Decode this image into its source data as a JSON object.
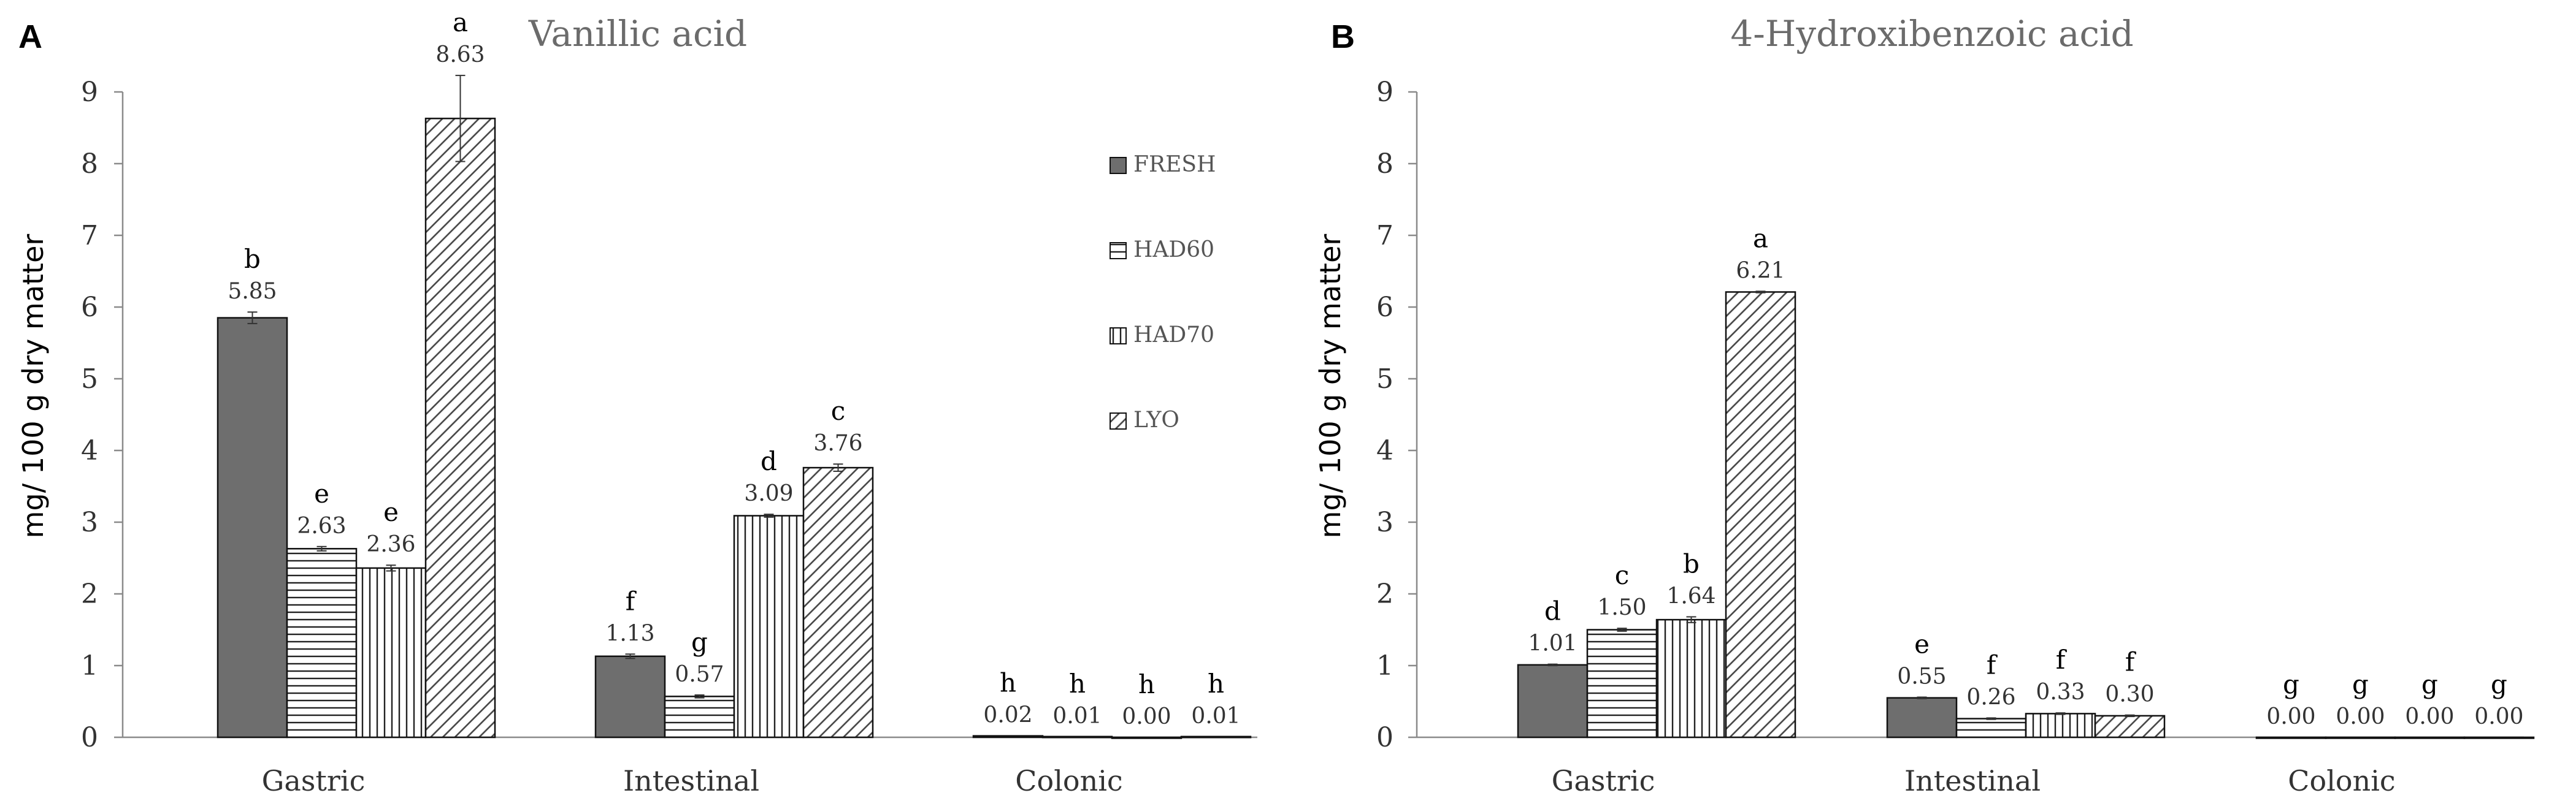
{
  "colors": {
    "FRESH": "#6e6e6e",
    "HAD60": "#ffffff",
    "HAD70": "#ffffff",
    "LYO": "#ffffff",
    "axis": "#8a8a8a",
    "stroke": "#111111"
  },
  "chart_data": [
    {
      "panel_label": "A",
      "type": "bar",
      "title": "Vanillic acid",
      "xlabel": "",
      "ylabel": "mg/ 100 g dry matter",
      "ylim": [
        0,
        9
      ],
      "yticks": [
        "0",
        "1",
        "2",
        "3",
        "4",
        "5",
        "6",
        "7",
        "8",
        "9"
      ],
      "categories": [
        "Gastric",
        "Intestinal",
        "Colonic"
      ],
      "legend_position": "right-upper",
      "series": [
        {
          "name": "FRESH",
          "pattern": "solid",
          "values": [
            5.85,
            1.13,
            0.02
          ],
          "labels": [
            "5.85",
            "1.13",
            "0.02"
          ],
          "letters": [
            "b",
            "f",
            "h"
          ],
          "errors": [
            0.08,
            0.03,
            0
          ]
        },
        {
          "name": "HAD60",
          "pattern": "horizontal",
          "values": [
            2.63,
            0.57,
            0.01
          ],
          "labels": [
            "2.63",
            "0.57",
            "0.01"
          ],
          "letters": [
            "e",
            "g",
            "h"
          ],
          "errors": [
            0.03,
            0.02,
            0
          ]
        },
        {
          "name": "HAD70",
          "pattern": "vertical",
          "values": [
            2.36,
            3.09,
            0.0
          ],
          "labels": [
            "2.36",
            "3.09",
            "0.00"
          ],
          "letters": [
            "e",
            "d",
            "h"
          ],
          "errors": [
            0.04,
            0.02,
            0
          ]
        },
        {
          "name": "LYO",
          "pattern": "diagonal",
          "values": [
            8.63,
            3.76,
            0.01
          ],
          "labels": [
            "8.63",
            "3.76",
            "0.01"
          ],
          "letters": [
            "a",
            "c",
            "h"
          ],
          "errors": [
            0.6,
            0.05,
            0
          ]
        }
      ]
    },
    {
      "panel_label": "B",
      "type": "bar",
      "title": "4-Hydroxibenzoic acid",
      "xlabel": "",
      "ylabel": "mg/ 100 g dry matter",
      "ylim": [
        0,
        9
      ],
      "yticks": [
        "0",
        "1",
        "2",
        "3",
        "4",
        "5",
        "6",
        "7",
        "8",
        "9"
      ],
      "categories": [
        "Gastric",
        "Intestinal",
        "Colonic"
      ],
      "series": [
        {
          "name": "FRESH",
          "pattern": "solid",
          "values": [
            1.01,
            0.55,
            0.0
          ],
          "labels": [
            "1.01",
            "0.55",
            "0.00"
          ],
          "letters": [
            "d",
            "e",
            "g"
          ],
          "errors": [
            0.01,
            0.01,
            0
          ]
        },
        {
          "name": "HAD60",
          "pattern": "horizontal",
          "values": [
            1.5,
            0.26,
            0.0
          ],
          "labels": [
            "1.50",
            "0.26",
            "0.00"
          ],
          "letters": [
            "c",
            "f",
            "g"
          ],
          "errors": [
            0.02,
            0.01,
            0
          ]
        },
        {
          "name": "HAD70",
          "pattern": "vertical",
          "values": [
            1.64,
            0.33,
            0.0
          ],
          "labels": [
            "1.64",
            "0.33",
            "0.00"
          ],
          "letters": [
            "b",
            "f",
            "g"
          ],
          "errors": [
            0.04,
            0.01,
            0
          ]
        },
        {
          "name": "LYO",
          "pattern": "diagonal",
          "values": [
            6.21,
            0.3,
            0.0
          ],
          "labels": [
            "6.21",
            "0.30",
            "0.00"
          ],
          "letters": [
            "a",
            "f",
            "g"
          ],
          "errors": [
            0.01,
            0.01,
            0
          ]
        }
      ]
    }
  ]
}
